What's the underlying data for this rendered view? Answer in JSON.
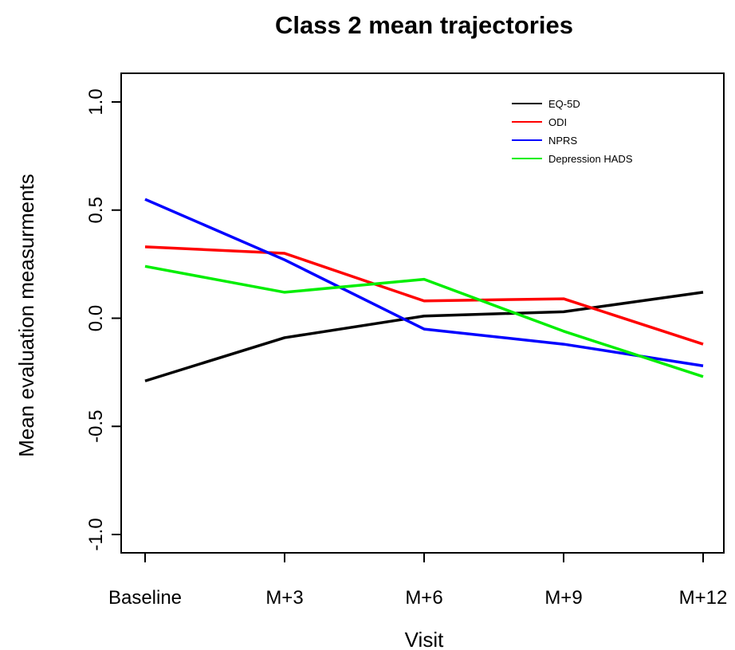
{
  "chart_data": {
    "type": "line",
    "title": "Class 2 mean trajectories",
    "xlabel": "Visit",
    "ylabel": "Mean evaluation measurments",
    "categories": [
      "Baseline",
      "M+3",
      "M+6",
      "M+9",
      "M+12"
    ],
    "yticks": [
      "-1.0",
      "-0.5",
      "0.0",
      "0.5",
      "1.0"
    ],
    "ytick_values": [
      -1.0,
      -0.5,
      0.0,
      0.5,
      1.0
    ],
    "ylim": [
      -1.1,
      1.1
    ],
    "grid": false,
    "legend_position": "top-right",
    "series": [
      {
        "name": "EQ-5D",
        "color": "#000000",
        "values": [
          -0.29,
          -0.09,
          0.01,
          0.03,
          0.12
        ]
      },
      {
        "name": "ODI",
        "color": "#ff0000",
        "values": [
          0.33,
          0.3,
          0.08,
          0.09,
          -0.12
        ]
      },
      {
        "name": "NPRS",
        "color": "#0000ff",
        "values": [
          0.55,
          0.27,
          -0.05,
          -0.12,
          -0.22
        ]
      },
      {
        "name": "Depression HADS",
        "color": "#00ee00",
        "values": [
          0.24,
          0.12,
          0.18,
          -0.06,
          -0.27
        ]
      }
    ]
  }
}
